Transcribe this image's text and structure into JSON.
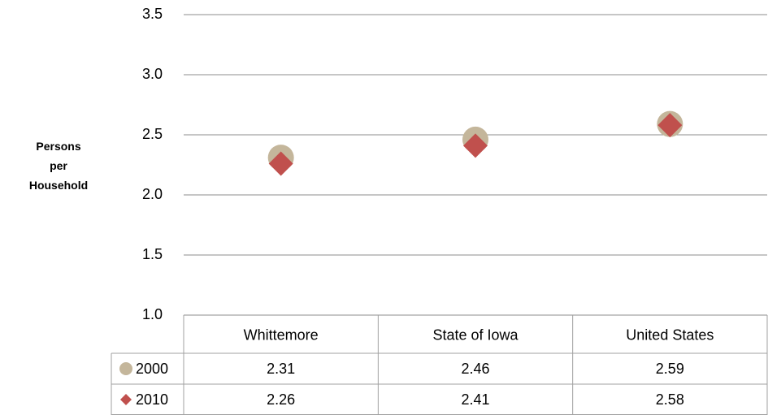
{
  "chart_data": {
    "type": "scatter",
    "y_label": "Persons per Household",
    "categories": [
      "Whittemore",
      "State of Iowa",
      "United States"
    ],
    "series": [
      {
        "name": "2000",
        "color": "#c4b69b",
        "marker": "circle",
        "values": [
          2.31,
          2.46,
          2.59
        ]
      },
      {
        "name": "2010",
        "color": "#c0504d",
        "marker": "diamond",
        "values": [
          2.26,
          2.41,
          2.58
        ]
      }
    ],
    "ylim": [
      1.0,
      3.5
    ],
    "yticks": [
      {
        "value": 1,
        "label": "1.0"
      },
      1.5,
      {
        "value": 2,
        "label": "2.0"
      },
      2.5,
      {
        "value": 3,
        "label": "3.0"
      },
      3.5
    ],
    "grid": true,
    "data_table": true
  }
}
